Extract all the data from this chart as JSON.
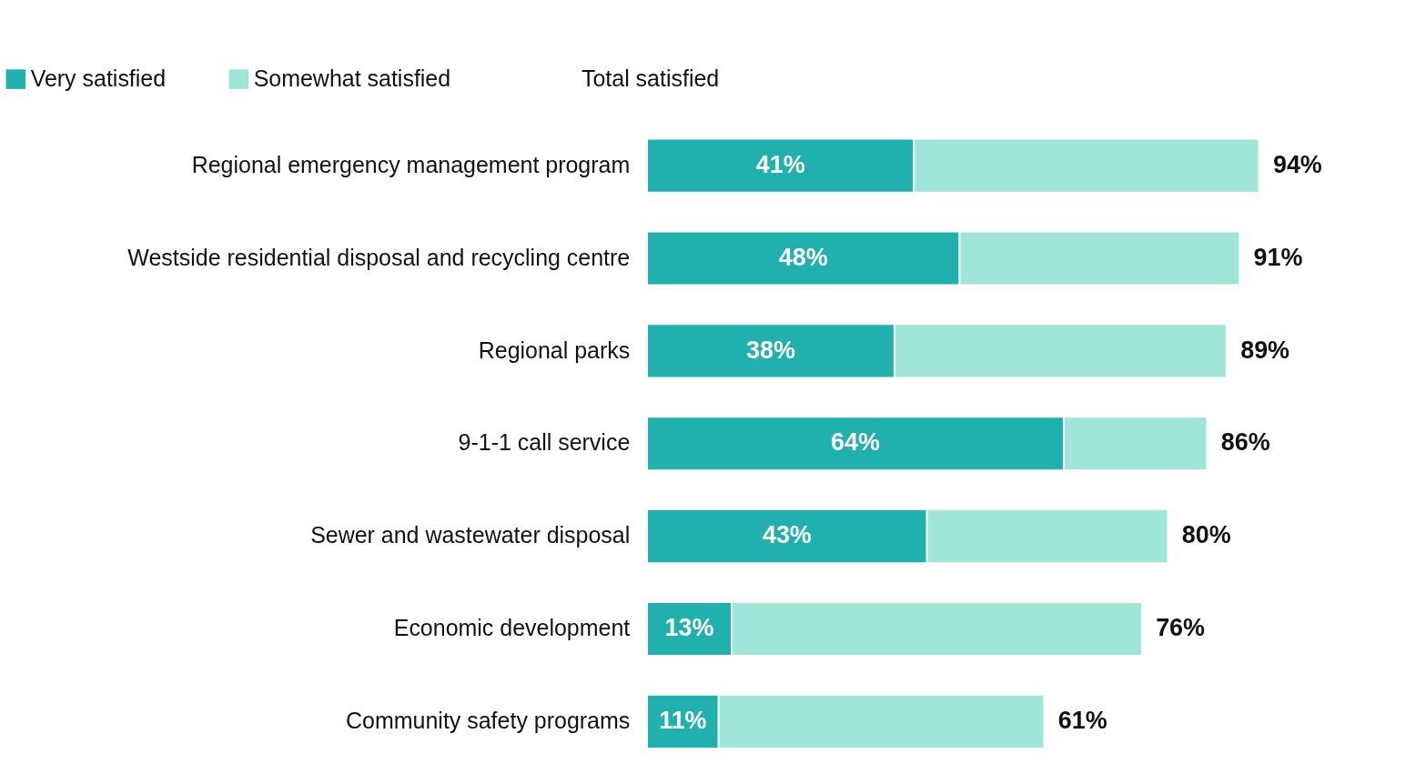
{
  "chart_data": {
    "type": "bar",
    "orientation": "horizontal",
    "stacked": true,
    "categories": [
      "Regional emergency management program",
      "Westside residential disposal and recycling centre",
      "Regional parks",
      "9-1-1 call service",
      "Sewer and wastewater disposal",
      "Economic development",
      "Community safety programs"
    ],
    "series": [
      {
        "name": "Very satisfied",
        "color": "#20b0ae",
        "values": [
          41,
          48,
          38,
          64,
          43,
          13,
          11
        ],
        "value_labels": [
          "41%",
          "48%",
          "38%",
          "64%",
          "43%",
          "13%",
          "11%"
        ]
      },
      {
        "name": "Somewhat satisfied",
        "color": "#a0e6d8",
        "values": [
          53,
          43,
          51,
          22,
          37,
          63,
          50
        ]
      }
    ],
    "totals": [
      "94%",
      "91%",
      "89%",
      "86%",
      "80%",
      "76%",
      "61%"
    ],
    "annotations": [
      "Total satisfied"
    ],
    "tick_labels": "y",
    "grid": false,
    "legend": "top left"
  }
}
